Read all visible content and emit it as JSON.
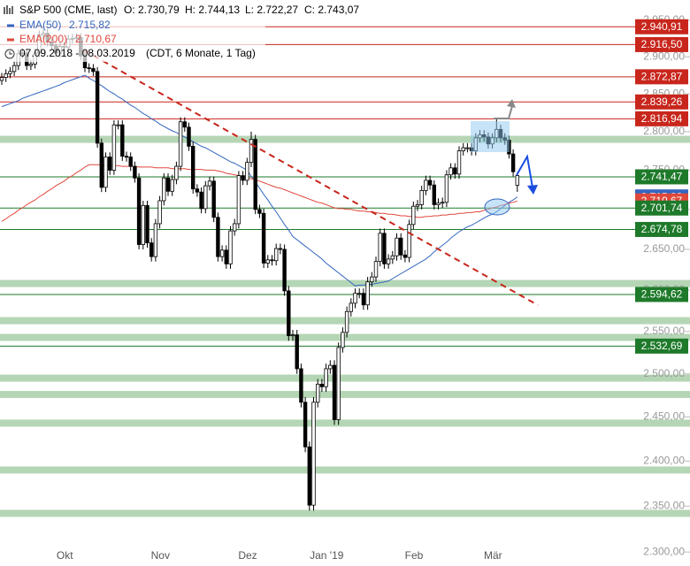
{
  "chart_data": {
    "type": "candlestick",
    "title": "S&P 500 (CME, last)",
    "quote_labels": [
      "O: 2.730,79",
      "H: 2.744,13",
      "L: 2.722,27",
      "C: 2.743,07"
    ],
    "period": "07.09.2018 - 08.03.2019",
    "subtitle": "(CDT, 6 Monate, 1 Tag)",
    "categories": [
      null,
      null,
      null,
      null,
      null,
      null,
      null,
      null,
      null,
      null,
      null,
      null,
      null,
      null,
      null,
      null,
      "Okt",
      null,
      null,
      null,
      null,
      null,
      null,
      null,
      null,
      null,
      null,
      null,
      null,
      null,
      null,
      null,
      null,
      null,
      null,
      null,
      null,
      null,
      null,
      "Nov",
      null,
      null,
      null,
      null,
      null,
      null,
      null,
      null,
      null,
      null,
      null,
      null,
      null,
      null,
      null,
      null,
      null,
      null,
      null,
      null,
      "Dez",
      null,
      null,
      null,
      null,
      null,
      null,
      null,
      null,
      null,
      null,
      null,
      null,
      null,
      null,
      null,
      null,
      null,
      null,
      "Jan '19",
      null,
      null,
      null,
      null,
      null,
      null,
      null,
      null,
      null,
      null,
      null,
      null,
      null,
      null,
      null,
      null,
      null,
      null,
      null,
      null,
      "Feb",
      null,
      null,
      null,
      null,
      null,
      null,
      null,
      null,
      null,
      null,
      null,
      null,
      null,
      null,
      null,
      null,
      null,
      null,
      "Mär",
      null,
      null,
      null,
      null,
      null
    ],
    "open": [
      2868,
      2872,
      2877,
      2880,
      2888,
      2904,
      2905,
      2888,
      2890,
      2905,
      2930,
      2932,
      2920,
      2915,
      2905,
      2914,
      2913,
      2924,
      2925,
      2926,
      2901,
      2885,
      2884,
      2880,
      2785,
      2728,
      2767,
      2750,
      2809,
      2809,
      2768,
      2767,
      2755,
      2740,
      2656,
      2705,
      2658,
      2641,
      2682,
      2711,
      2740,
      2723,
      2738,
      2755,
      2813,
      2806,
      2781,
      2726,
      2722,
      2701,
      2730,
      2736,
      2690,
      2641,
      2649,
      2632,
      2673,
      2682,
      2743,
      2737,
      2760,
      2790,
      2700,
      2695,
      2633,
      2637,
      2636,
      2651,
      2650,
      2599,
      2545,
      2546,
      2506,
      2467,
      2416,
      2351,
      2467,
      2488,
      2485,
      2506,
      2510,
      2447,
      2531,
      2549,
      2574,
      2584,
      2596,
      2596,
      2582,
      2610,
      2616,
      2635,
      2670,
      2632,
      2638,
      2642,
      2664,
      2643,
      2640,
      2681,
      2704,
      2706,
      2724,
      2737,
      2731,
      2706,
      2708,
      2709,
      2744,
      2753,
      2745,
      2775,
      2779,
      2779,
      2775,
      2792,
      2796,
      2793,
      2784,
      2792,
      2803,
      2792,
      2789,
      2771,
      2730.79
    ],
    "high": [
      2878,
      2883,
      2886,
      2894,
      2910,
      2911,
      2911,
      2896,
      2911,
      2936,
      2938,
      2938,
      2926,
      2921,
      2920,
      2920,
      2930,
      2931,
      2932,
      2932,
      2907,
      2891,
      2890,
      2886,
      2791,
      2773,
      2773,
      2815,
      2815,
      2815,
      2774,
      2773,
      2761,
      2746,
      2711,
      2711,
      2664,
      2688,
      2717,
      2746,
      2746,
      2744,
      2761,
      2819,
      2819,
      2812,
      2787,
      2732,
      2728,
      2736,
      2742,
      2742,
      2696,
      2655,
      2655,
      2679,
      2688,
      2749,
      2749,
      2766,
      2800,
      2796,
      2706,
      2701,
      2643,
      2643,
      2657,
      2657,
      2656,
      2605,
      2552,
      2552,
      2512,
      2473,
      2422,
      2473,
      2494,
      2494,
      2512,
      2516,
      2516,
      2537,
      2555,
      2580,
      2590,
      2602,
      2602,
      2602,
      2616,
      2622,
      2641,
      2676,
      2676,
      2644,
      2648,
      2670,
      2670,
      2649,
      2687,
      2710,
      2712,
      2730,
      2743,
      2743,
      2737,
      2714,
      2715,
      2750,
      2759,
      2759,
      2781,
      2785,
      2785,
      2785,
      2798,
      2802,
      2802,
      2799,
      2798,
      2817,
      2809,
      2798,
      2795,
      2777,
      2744.13
    ],
    "low": [
      2862,
      2866,
      2871,
      2874,
      2882,
      2898,
      2882,
      2882,
      2884,
      2899,
      2924,
      2914,
      2909,
      2899,
      2899,
      2907,
      2907,
      2918,
      2919,
      2895,
      2879,
      2878,
      2874,
      2779,
      2722,
      2722,
      2744,
      2744,
      2803,
      2762,
      2761,
      2749,
      2734,
      2650,
      2650,
      2652,
      2635,
      2635,
      2676,
      2705,
      2717,
      2717,
      2732,
      2749,
      2800,
      2775,
      2720,
      2716,
      2695,
      2695,
      2724,
      2684,
      2635,
      2635,
      2626,
      2626,
      2667,
      2676,
      2731,
      2731,
      2754,
      2694,
      2689,
      2627,
      2627,
      2630,
      2630,
      2644,
      2593,
      2539,
      2539,
      2500,
      2461,
      2410,
      2345,
      2345,
      2461,
      2479,
      2479,
      2500,
      2441,
      2441,
      2525,
      2543,
      2568,
      2578,
      2590,
      2576,
      2576,
      2604,
      2610,
      2629,
      2626,
      2626,
      2632,
      2636,
      2637,
      2634,
      2634,
      2675,
      2698,
      2700,
      2718,
      2725,
      2700,
      2700,
      2702,
      2703,
      2738,
      2739,
      2739,
      2769,
      2773,
      2769,
      2769,
      2786,
      2787,
      2778,
      2778,
      2786,
      2786,
      2783,
      2765,
      2742,
      2722.27
    ],
    "close": [
      2872,
      2877,
      2880,
      2888,
      2904,
      2905,
      2888,
      2890,
      2905,
      2930,
      2932,
      2920,
      2915,
      2905,
      2914,
      2913,
      2924,
      2925,
      2926,
      2901,
      2885,
      2884,
      2880,
      2785,
      2728,
      2767,
      2750,
      2809,
      2809,
      2768,
      2767,
      2755,
      2740,
      2656,
      2705,
      2658,
      2641,
      2682,
      2711,
      2740,
      2723,
      2738,
      2755,
      2813,
      2806,
      2781,
      2726,
      2722,
      2701,
      2730,
      2736,
      2690,
      2641,
      2649,
      2632,
      2673,
      2682,
      2743,
      2737,
      2760,
      2790,
      2700,
      2695,
      2633,
      2637,
      2636,
      2651,
      2650,
      2599,
      2545,
      2546,
      2506,
      2467,
      2416,
      2351,
      2467,
      2488,
      2485,
      2506,
      2510,
      2447,
      2531,
      2549,
      2574,
      2584,
      2596,
      2596,
      2582,
      2610,
      2616,
      2635,
      2670,
      2632,
      2638,
      2642,
      2664,
      2643,
      2640,
      2681,
      2704,
      2706,
      2724,
      2737,
      2731,
      2706,
      2708,
      2709,
      2744,
      2753,
      2745,
      2775,
      2779,
      2779,
      2775,
      2792,
      2796,
      2793,
      2784,
      2792,
      2803,
      2792,
      2789,
      2771,
      2748,
      2743.07
    ],
    "up_color": "#ffffff",
    "down_color": "#000000",
    "series": [
      {
        "name": "EMA(50)",
        "color": "#3567c0",
        "value_label": "2.715,82",
        "values": [
          2833,
          2835,
          2837,
          2839,
          2841,
          2844,
          2846,
          2848,
          2850,
          2852,
          2854,
          2856,
          2858,
          2860,
          2862,
          2865,
          2867,
          2869,
          2871,
          2873,
          2875,
          2871,
          2868,
          2864,
          2861,
          2857,
          2853,
          2850,
          2846,
          2843,
          2839,
          2835,
          2832,
          2828,
          2824,
          2821,
          2817,
          2814,
          2810,
          2807,
          2804,
          2801,
          2799,
          2796,
          2793,
          2790,
          2787,
          2784,
          2781,
          2779,
          2776,
          2773,
          2770,
          2767,
          2764,
          2761,
          2759,
          2756,
          2753,
          2750,
          2742,
          2735,
          2727,
          2719,
          2712,
          2704,
          2697,
          2689,
          2681,
          2674,
          2666,
          2662,
          2658,
          2654,
          2650,
          2646,
          2642,
          2638,
          2633,
          2629,
          2625,
          2621,
          2617,
          2613,
          2609,
          2605,
          2606,
          2606,
          2607,
          2607,
          2608,
          2609,
          2610,
          2611,
          2614,
          2617,
          2620,
          2623,
          2626,
          2629,
          2632,
          2635,
          2638,
          2642,
          2647,
          2651,
          2655,
          2659,
          2664,
          2668,
          2672,
          2675,
          2678,
          2680,
          2683,
          2686,
          2689,
          2692,
          2694,
          2697,
          2701,
          2705,
          2709,
          2712,
          2715.82
        ]
      },
      {
        "name": "EMA(200)",
        "color": "#e0483c",
        "value_label": "2.710,67",
        "values": [
          2685,
          2688,
          2692,
          2695,
          2699,
          2702,
          2706,
          2709,
          2712,
          2716,
          2719,
          2723,
          2726,
          2730,
          2733,
          2736,
          2740,
          2743,
          2747,
          2750,
          2754,
          2757,
          2757,
          2757,
          2757,
          2756,
          2756,
          2756,
          2756,
          2755,
          2755,
          2755,
          2755,
          2754,
          2754,
          2754,
          2754,
          2753,
          2753,
          2753,
          2753,
          2752,
          2752,
          2752,
          2752,
          2751,
          2751,
          2751,
          2751,
          2750,
          2750,
          2750,
          2749,
          2748,
          2746,
          2745,
          2744,
          2743,
          2742,
          2740,
          2739,
          2738,
          2736,
          2734,
          2732,
          2730,
          2728,
          2727,
          2725,
          2723,
          2721,
          2719,
          2717,
          2715,
          2713,
          2711,
          2709,
          2708,
          2706,
          2704,
          2702,
          2701,
          2701,
          2700,
          2700,
          2699,
          2698,
          2698,
          2697,
          2697,
          2696,
          2695,
          2695,
          2694,
          2694,
          2693,
          2692,
          2692,
          2691,
          2691,
          2690,
          2690,
          2691,
          2691,
          2692,
          2692,
          2693,
          2693,
          2694,
          2694,
          2695,
          2695,
          2696,
          2696,
          2697,
          2697,
          2699,
          2700,
          2702,
          2703,
          2705,
          2706,
          2708,
          2709,
          2710.67
        ]
      }
    ],
    "ylim": [
      2285,
      2978
    ],
    "log_scale": true,
    "yticks": [
      {
        "value": 2950,
        "label": "2.950,00"
      },
      {
        "value": 2900,
        "label": "2.900,00"
      },
      {
        "value": 2850,
        "label": "2.850,00"
      },
      {
        "value": 2800,
        "label": "2.800,00"
      },
      {
        "value": 2750,
        "label": "2.750,00"
      },
      {
        "value": 2700,
        "label": "2.700,00"
      },
      {
        "value": 2650,
        "label": "2.650,00"
      },
      {
        "value": 2600,
        "label": "2.600,00"
      },
      {
        "value": 2550,
        "label": "2.550,00"
      },
      {
        "value": 2500,
        "label": "2.500,00"
      },
      {
        "value": 2450,
        "label": "2.450,00"
      },
      {
        "value": 2400,
        "label": "2.400,00"
      },
      {
        "value": 2350,
        "label": "2.350,00"
      },
      {
        "value": 2300,
        "label": "2.300,00"
      }
    ],
    "levels": {
      "values": [
        2940.91,
        2916.5,
        2872.87,
        2839.26,
        2816.94,
        2741.47,
        2701.74,
        2674.78,
        2594.62,
        2532.69
      ],
      "value_labels": [
        "2.940,91",
        "2.916,50",
        "2.872,87",
        "2.839,26",
        "2.816,94",
        "2.741,47",
        "2.701,74",
        "2.674,78",
        "2.594,62",
        "2.532,69"
      ],
      "colors": [
        "#c8261c",
        "#c8261c",
        "#c8261c",
        "#c8261c",
        "#c8261c",
        "#1e7a2a",
        "#1e7a2a",
        "#1e7a2a",
        "#1e7a2a",
        "#1e7a2a"
      ]
    },
    "zones": {
      "color": "#a8cfa8",
      "values": [
        2790,
        2608,
        2563,
        2543,
        2495,
        2476,
        2443,
        2390,
        2342
      ]
    }
  }
}
